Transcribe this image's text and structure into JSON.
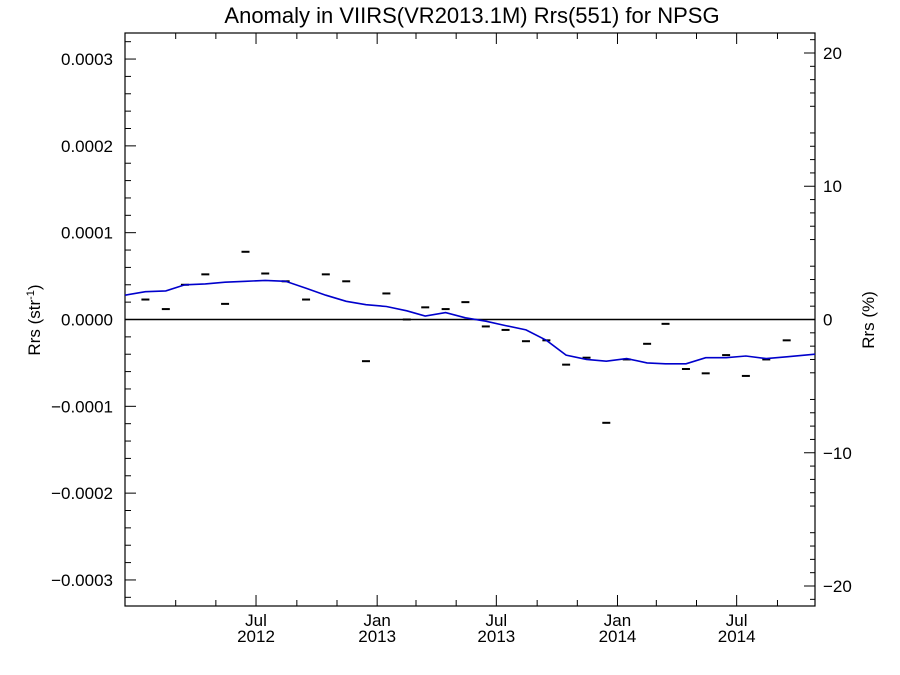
{
  "chart_data": {
    "type": "scatter",
    "title": "Anomaly in VIIRS(VR2013.1M) Rrs(551) for NPSG",
    "ylabel_left": {
      "text": "Rrs (str",
      "sup": "-1",
      "tail": ")"
    },
    "ylabel_right": "Rrs (%)",
    "x_axis": {
      "range": [
        "2011-12-15",
        "2014-10-28"
      ],
      "major_ticks": [
        {
          "date": "2012-07-01",
          "label": "Jul",
          "year": "2012"
        },
        {
          "date": "2013-01-01",
          "label": "Jan",
          "year": "2013"
        },
        {
          "date": "2013-07-01",
          "label": "Jul",
          "year": "2013"
        },
        {
          "date": "2014-01-01",
          "label": "Jan",
          "year": "2014"
        },
        {
          "date": "2014-07-01",
          "label": "Jul",
          "year": "2014"
        }
      ],
      "minor_ticks": [
        "2012-03-01",
        "2012-05-01",
        "2012-09-01",
        "2012-11-01",
        "2013-03-01",
        "2013-05-01",
        "2013-09-01",
        "2013-11-01",
        "2014-03-01",
        "2014-05-01",
        "2014-09-01"
      ]
    },
    "y_left": {
      "range": [
        -0.00033,
        0.00033
      ],
      "ticks": [
        -0.0003,
        -0.0002,
        -0.0001,
        0.0,
        0.0001,
        0.0002,
        0.0003
      ],
      "tick_labels": [
        "−0.0003",
        "−0.0002",
        "−0.0001",
        "0.0000",
        "0.0001",
        "0.0002",
        "0.0003"
      ]
    },
    "y_right": {
      "range": [
        -21.5,
        21.5
      ],
      "ticks": [
        -20,
        -10,
        0,
        10,
        20
      ],
      "tick_labels": [
        "−20",
        "−10",
        "0",
        "10",
        "20"
      ]
    },
    "zero_line": true,
    "series": [
      {
        "kind": "points",
        "color": "#000000",
        "x": [
          "2012-01-15",
          "2012-02-15",
          "2012-03-15",
          "2012-04-15",
          "2012-05-15",
          "2012-06-15",
          "2012-07-15",
          "2012-08-15",
          "2012-09-15",
          "2012-10-15",
          "2012-11-15",
          "2012-12-15",
          "2013-01-15",
          "2013-02-15",
          "2013-03-15",
          "2013-04-15",
          "2013-05-15",
          "2013-06-15",
          "2013-07-15",
          "2013-08-15",
          "2013-09-15",
          "2013-10-15",
          "2013-11-15",
          "2013-12-15",
          "2014-01-15",
          "2014-02-15",
          "2014-03-15",
          "2014-04-15",
          "2014-05-15",
          "2014-06-15",
          "2014-07-15",
          "2014-08-15",
          "2014-09-15"
        ],
        "y": [
          2.3e-05,
          1.2e-05,
          4e-05,
          5.2e-05,
          1.8e-05,
          7.8e-05,
          5.3e-05,
          4.4e-05,
          2.3e-05,
          5.2e-05,
          4.4e-05,
          -4.8e-05,
          3e-05,
          0.0,
          1.4e-05,
          1.2e-05,
          2e-05,
          -8e-06,
          -1.2e-05,
          -2.5e-05,
          -2.4e-05,
          -5.2e-05,
          -4.4e-05,
          -0.000119,
          -4.6e-05,
          -2.8e-05,
          -5e-06,
          -5.7e-05,
          -6.2e-05,
          -4.1e-05,
          -6.5e-05,
          -4.6e-05,
          -2.4e-05
        ]
      },
      {
        "kind": "line",
        "color": "#0000cc",
        "x": [
          "2011-12-15",
          "2012-01-15",
          "2012-02-15",
          "2012-03-15",
          "2012-04-15",
          "2012-05-15",
          "2012-06-15",
          "2012-07-15",
          "2012-08-15",
          "2012-09-15",
          "2012-10-15",
          "2012-11-15",
          "2012-12-15",
          "2013-01-15",
          "2013-02-15",
          "2013-03-15",
          "2013-04-15",
          "2013-05-15",
          "2013-06-15",
          "2013-07-15",
          "2013-08-15",
          "2013-09-15",
          "2013-10-15",
          "2013-11-15",
          "2013-12-15",
          "2014-01-15",
          "2014-02-15",
          "2014-03-15",
          "2014-04-15",
          "2014-05-15",
          "2014-06-15",
          "2014-07-15",
          "2014-08-15",
          "2014-09-15",
          "2014-10-28"
        ],
        "y": [
          2.8e-05,
          3.2e-05,
          3.3e-05,
          4e-05,
          4.1e-05,
          4.3e-05,
          4.4e-05,
          4.5e-05,
          4.4e-05,
          3.6e-05,
          2.8e-05,
          2.1e-05,
          1.7e-05,
          1.5e-05,
          1e-05,
          4e-06,
          8e-06,
          2e-06,
          -2e-06,
          -7e-06,
          -1.2e-05,
          -2.4e-05,
          -4.1e-05,
          -4.6e-05,
          -4.8e-05,
          -4.5e-05,
          -5e-05,
          -5.1e-05,
          -5.1e-05,
          -4.4e-05,
          -4.4e-05,
          -4.2e-05,
          -4.5e-05,
          -4.3e-05,
          -4e-05
        ]
      }
    ]
  }
}
